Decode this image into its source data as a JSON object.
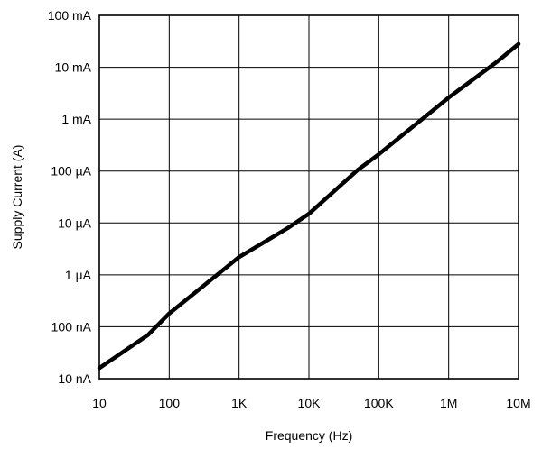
{
  "chart_data": {
    "type": "line",
    "xlabel": "Frequency (Hz)",
    "ylabel": "Supply Current (A)",
    "x_scale": "log",
    "y_scale": "log",
    "xlim": [
      10,
      10000000
    ],
    "ylim": [
      1e-08,
      0.1
    ],
    "grid": true,
    "x_ticks": [
      {
        "value": 10,
        "label": "10"
      },
      {
        "value": 100,
        "label": "100"
      },
      {
        "value": 1000,
        "label": "1K"
      },
      {
        "value": 10000,
        "label": "10K"
      },
      {
        "value": 100000,
        "label": "100K"
      },
      {
        "value": 1000000,
        "label": "1M"
      },
      {
        "value": 10000000,
        "label": "10M"
      }
    ],
    "y_ticks": [
      {
        "value": 1e-08,
        "label": "10 nA"
      },
      {
        "value": 1e-07,
        "label": "100 nA"
      },
      {
        "value": 1e-06,
        "label": "1 µA"
      },
      {
        "value": 1e-05,
        "label": "10 µA"
      },
      {
        "value": 0.0001,
        "label": "100 µA"
      },
      {
        "value": 0.001,
        "label": "1 mA"
      },
      {
        "value": 0.01,
        "label": "10 mA"
      },
      {
        "value": 0.1,
        "label": "100 mA"
      }
    ],
    "series": [
      {
        "x": [
          10,
          50,
          100,
          1000,
          5000,
          10000,
          50000,
          100000,
          1000000,
          5000000,
          10000000
        ],
        "y": [
          1.6e-08,
          7e-08,
          1.8e-07,
          2.2e-06,
          8e-06,
          1.5e-05,
          0.000105,
          0.00021,
          0.0026,
          0.013,
          0.028
        ]
      }
    ]
  }
}
